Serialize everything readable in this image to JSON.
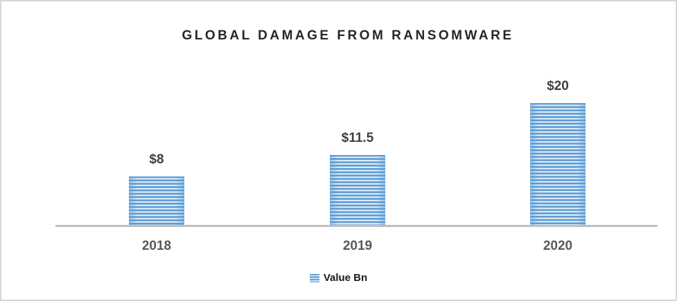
{
  "chart_data": {
    "type": "bar",
    "title": "GLOBAL DAMAGE FROM RANSOMWARE",
    "categories": [
      "2018",
      "2019",
      "2020"
    ],
    "series": [
      {
        "name": "Value Bn",
        "values": [
          8,
          11.5,
          20
        ]
      }
    ],
    "data_labels": [
      "$8",
      "$11.5",
      "$20"
    ],
    "xlabel": "",
    "ylabel": "",
    "ylim": [
      0,
      20
    ],
    "grid": false,
    "legend": {
      "position": "bottom",
      "entries": [
        "Value Bn"
      ]
    },
    "colors": {
      "bar_primary": "#5B9BD5",
      "bar_stripe_light": "#BDD7EE",
      "axis_line": "#BFBFBF",
      "title_text": "#262626",
      "data_label_text": "#3F3F3F",
      "category_label_text": "#595959",
      "legend_text": "#1A1A1A",
      "canvas_border": "#D6D6D6",
      "background": "#FFFFFF"
    }
  }
}
